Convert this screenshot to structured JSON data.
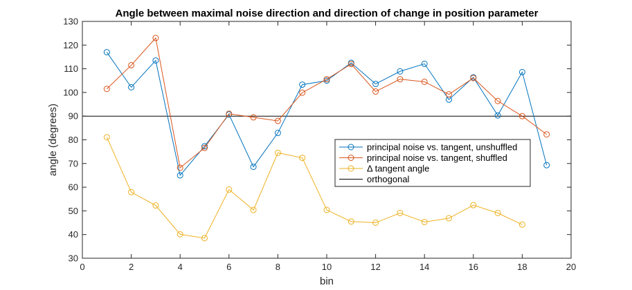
{
  "chart_data": {
    "type": "line",
    "title": "Angle between maximal noise direction and direction of change in position parameter",
    "xlabel": "bin",
    "ylabel": "angle (degrees)",
    "xlim": [
      0,
      20
    ],
    "ylim": [
      30,
      130
    ],
    "xticks": [
      "0",
      "2",
      "4",
      "6",
      "8",
      "10",
      "12",
      "14",
      "16",
      "18",
      "20"
    ],
    "yticks": [
      "30",
      "40",
      "50",
      "60",
      "70",
      "80",
      "90",
      "100",
      "110",
      "120",
      "130"
    ],
    "grid": false,
    "legend_position": "inside-right",
    "series": [
      {
        "name": "principal noise vs. tangent, unshuffled",
        "color": "#0072BD",
        "x": [
          1,
          2,
          3,
          4,
          5,
          6,
          7,
          8,
          9,
          10,
          11,
          12,
          13,
          14,
          15,
          16,
          17,
          18,
          19
        ],
        "y": [
          117,
          102.2,
          113.5,
          65,
          77.3,
          90.7,
          68.6,
          82.9,
          103.3,
          105,
          112.5,
          103.6,
          108.9,
          112.1,
          97,
          106.4,
          90.3,
          108.6,
          69.3
        ]
      },
      {
        "name": "principal noise vs. tangent, shuffled",
        "color": "#D95319",
        "x": [
          1,
          2,
          3,
          4,
          5,
          6,
          7,
          8,
          9,
          10,
          11,
          12,
          13,
          14,
          15,
          16,
          17,
          18,
          19
        ],
        "y": [
          101.5,
          111.5,
          123,
          68.2,
          76.6,
          91,
          89.5,
          88,
          99.9,
          105.6,
          112,
          100.4,
          105.6,
          104.5,
          99.2,
          106.1,
          96.4,
          90,
          82.3
        ]
      },
      {
        "name": "Δ tangent angle",
        "color": "#EDB120",
        "x": [
          1,
          2,
          3,
          4,
          5,
          6,
          7,
          8,
          9,
          10,
          11,
          12,
          13,
          14,
          15,
          16,
          17,
          18
        ],
        "y": [
          81.1,
          57.9,
          52.3,
          40.1,
          38.5,
          59,
          50.4,
          74.5,
          72.4,
          50.4,
          45.5,
          45,
          49.1,
          45.3,
          46.9,
          52.4,
          49.1,
          44.2
        ]
      }
    ],
    "reference_lines": [
      {
        "name": "orthogonal",
        "y": 90,
        "color": "#000000"
      }
    ]
  }
}
